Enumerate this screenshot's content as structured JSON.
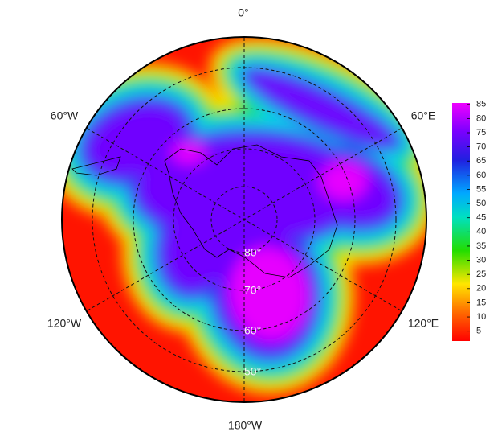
{
  "map": {
    "longitude_labels": [
      "0°",
      "60°E",
      "120°E",
      "180°W",
      "120°W",
      "60°W"
    ],
    "latitude_labels": [
      "80°",
      "70°",
      "60°",
      "50°"
    ]
  },
  "colorbar": {
    "lim": [
      1.5,
      85.5
    ],
    "ticks": [
      5,
      10,
      15,
      20,
      25,
      30,
      35,
      40,
      45,
      50,
      55,
      60,
      65,
      70,
      75,
      80,
      85
    ]
  }
}
